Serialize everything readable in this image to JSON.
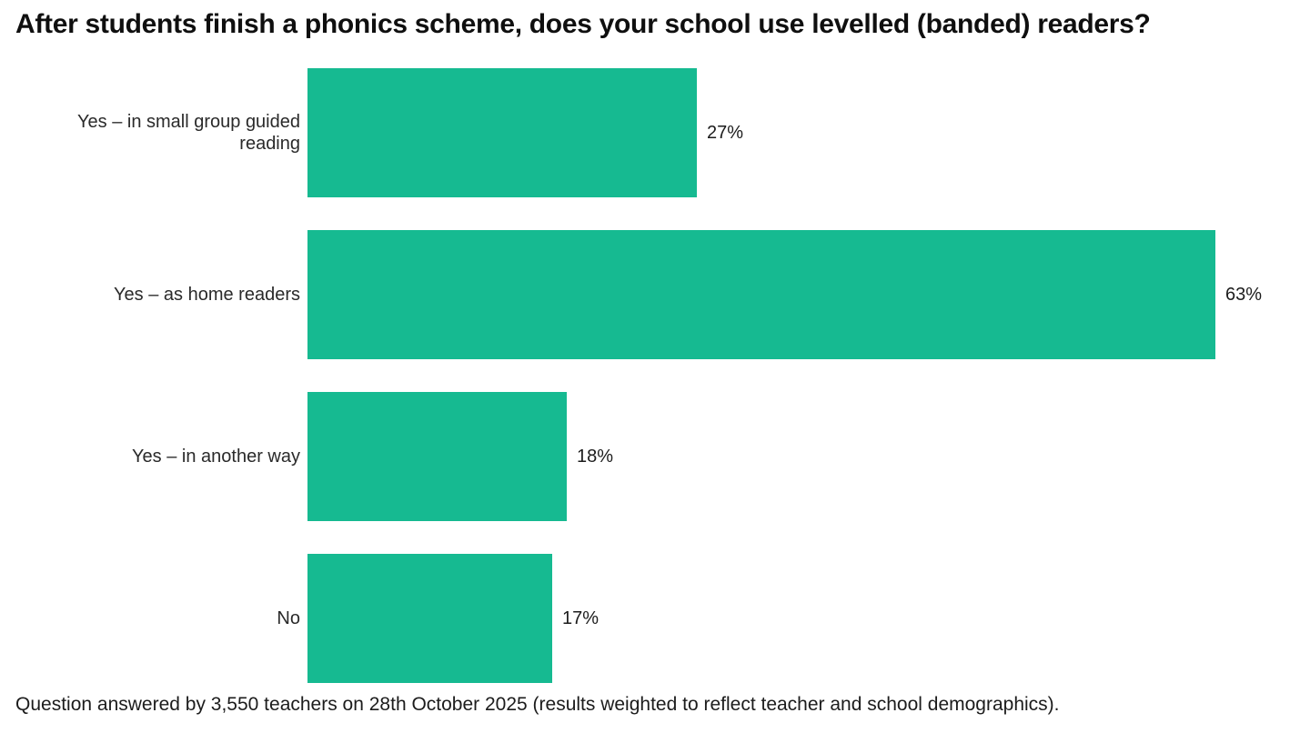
{
  "title": "After students finish a phonics scheme, does your school use levelled (banded) readers?",
  "footer": "Question answered by 3,550 teachers on 28th October 2025 (results weighted to reflect teacher and school demographics).",
  "colors": {
    "bar": "#16BA91",
    "title_text": "#0f0f0f",
    "label_text": "#2a2a2a",
    "value_text": "#1c1c1c",
    "background": "#ffffff"
  },
  "chart_data": {
    "type": "bar",
    "orientation": "horizontal",
    "title": "After students finish a phonics scheme, does your school use levelled (banded) readers?",
    "categories": [
      "Yes – in small group guided reading",
      "Yes – as home readers",
      "Yes – in another way",
      "No"
    ],
    "values": [
      27,
      63,
      18,
      17
    ],
    "value_labels": [
      "27%",
      "63%",
      "18%",
      "17%"
    ],
    "xlabel": "",
    "ylabel": "",
    "xlim": [
      0,
      63
    ],
    "grid": false,
    "legend": false,
    "value_label_position": "right-of-bar",
    "category_label_position": "left-right-aligned"
  }
}
